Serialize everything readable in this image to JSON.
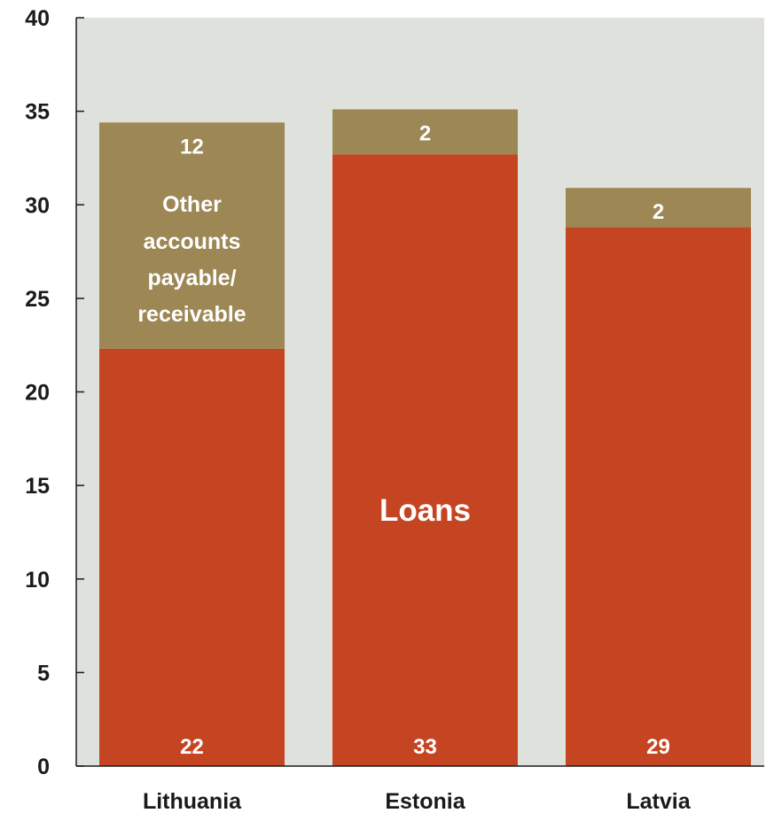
{
  "chart_data": {
    "type": "bar",
    "stacked": true,
    "categories": [
      "Lithuania",
      "Estonia",
      "Latvia"
    ],
    "series": [
      {
        "key": "loans",
        "values": [
          22.3,
          32.7,
          28.8
        ],
        "labels": [
          "22",
          "33",
          "29"
        ]
      },
      {
        "key": "other",
        "values": [
          12.1,
          2.4,
          2.1
        ],
        "labels": [
          "12",
          "2",
          "2"
        ]
      }
    ],
    "annotations": {
      "loans": "Loans",
      "other": [
        "Other",
        "accounts",
        "payable/",
        "receivable"
      ]
    },
    "ylim": [
      0,
      40
    ],
    "yticks": [
      "0",
      "5",
      "10",
      "15",
      "20",
      "25",
      "30",
      "35",
      "40"
    ],
    "grid": false,
    "legend": "none"
  },
  "colors": {
    "loans": "#c54523",
    "other": "#9c8755",
    "plot_background": "#dfe1dd",
    "axis": "#1a1a1a"
  }
}
